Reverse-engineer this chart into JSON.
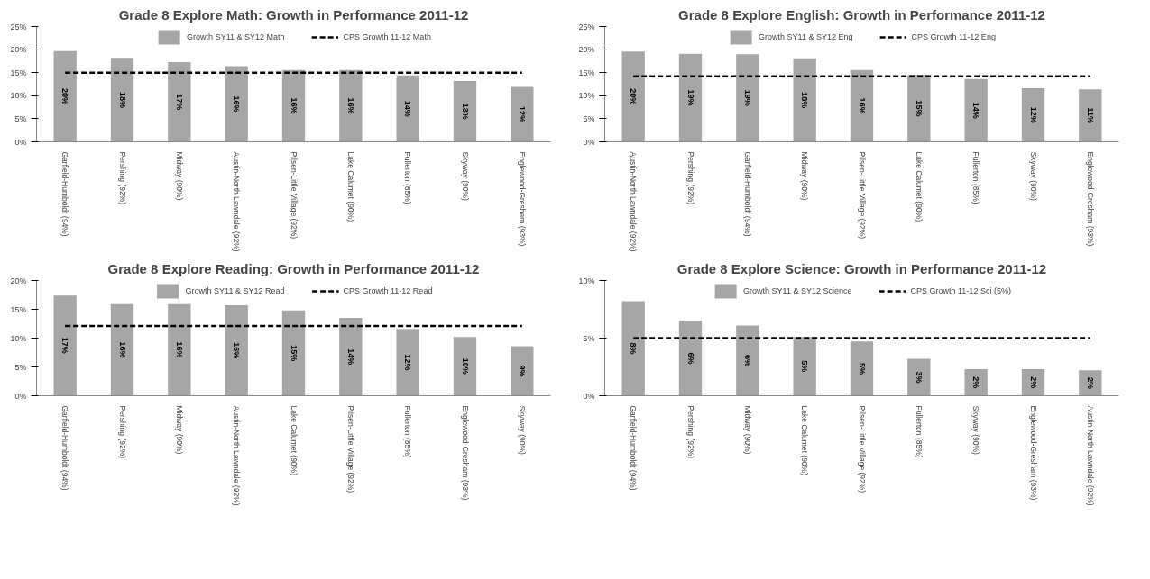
{
  "chart_data": [
    {
      "type": "bar",
      "title": "Grade 8 Explore Math: Growth in Performance 2011-12",
      "categories": [
        "Garfield-Humboldt (94%)",
        "Pershing (92%)",
        "Midway (90%)",
        "Austin-North Lawndale (92%)",
        "Pilsen-Little Village (92%)",
        "Lake Calumet (90%)",
        "Fullerton (85%)",
        "Skyway (90%)",
        "Englewood-Gresham (93%)"
      ],
      "series": [
        {
          "name": "Growth SY11 & SY12 Math",
          "color": "#a6a6a6",
          "values": [
            19.7,
            18.2,
            17.3,
            16.4,
            15.6,
            15.6,
            14.4,
            13.2,
            11.9
          ],
          "value_labels": [
            "20%",
            "18%",
            "17%",
            "16%",
            "16%",
            "16%",
            "14%",
            "13%",
            "12%"
          ]
        },
        {
          "name": "CPS Growth 11-12 Math",
          "type": "line",
          "line_style": "dashed",
          "color": "#000000",
          "values": [
            15,
            15,
            15,
            15,
            15,
            15,
            15,
            15,
            15
          ]
        }
      ],
      "ylim": [
        0,
        25
      ],
      "yticks": [
        {
          "value": 0,
          "label": "0%"
        },
        {
          "value": 5,
          "label": "5%"
        },
        {
          "value": 10,
          "label": "10%"
        },
        {
          "value": 15,
          "label": "15%"
        },
        {
          "value": 20,
          "label": "20%"
        },
        {
          "value": 25,
          "label": "25%"
        }
      ],
      "legend": "top"
    },
    {
      "type": "bar",
      "title": "Grade 8 Explore English: Growth in Performance 2011-12",
      "categories": [
        "Austin-North Lawndale (92%)",
        "Pershing (92%)",
        "Garfield-Humboldt (94%)",
        "Midway (90%)",
        "Pilsen-Little Village (92%)",
        "Lake Calumet (90%)",
        "Fullerton (85%)",
        "Skyway (90%)",
        "Englewood-Gresham (93%)"
      ],
      "series": [
        {
          "name": "Growth SY11 & SY12 Eng",
          "color": "#a6a6a6",
          "values": [
            19.6,
            19.1,
            19.0,
            18.1,
            15.6,
            14.5,
            13.6,
            11.6,
            11.4
          ],
          "value_labels": [
            "20%",
            "19%",
            "19%",
            "18%",
            "16%",
            "15%",
            "14%",
            "12%",
            "11%"
          ]
        },
        {
          "name": "CPS Growth 11-12 Eng",
          "type": "line",
          "line_style": "dashed",
          "color": "#000000",
          "values": [
            14.2,
            14.2,
            14.2,
            14.2,
            14.2,
            14.2,
            14.2,
            14.2,
            14.2
          ]
        }
      ],
      "ylim": [
        0,
        25
      ],
      "yticks": [
        {
          "value": 0,
          "label": "0%"
        },
        {
          "value": 5,
          "label": "5%"
        },
        {
          "value": 10,
          "label": "10%"
        },
        {
          "value": 15,
          "label": "15%"
        },
        {
          "value": 20,
          "label": "20%"
        },
        {
          "value": 25,
          "label": "25%"
        }
      ],
      "legend": "top"
    },
    {
      "type": "bar",
      "title": "Grade 8 Explore Reading: Growth in Performance 2011-12",
      "categories": [
        "Garfield-Humboldt (94%)",
        "Pershing (92%)",
        "Midway (90%)",
        "Austin-North Lawndale (92%)",
        "Lake Calumet (90%)",
        "Pilsen-Little Village (92%)",
        "Fullerton (85%)",
        "Englewood-Gresham (93%)",
        "Skyway (90%)"
      ],
      "series": [
        {
          "name": "Growth SY11 & SY12 Read",
          "color": "#a6a6a6",
          "values": [
            17.4,
            15.9,
            15.9,
            15.7,
            14.8,
            13.5,
            11.6,
            10.2,
            8.6
          ],
          "value_labels": [
            "17%",
            "16%",
            "16%",
            "16%",
            "15%",
            "14%",
            "12%",
            "10%",
            "9%"
          ]
        },
        {
          "name": "CPS Growth 11-12 Read",
          "type": "line",
          "line_style": "dashed",
          "color": "#000000",
          "values": [
            12.1,
            12.1,
            12.1,
            12.1,
            12.1,
            12.1,
            12.1,
            12.1,
            12.1
          ]
        }
      ],
      "ylim": [
        0,
        20
      ],
      "yticks": [
        {
          "value": 0,
          "label": "0%"
        },
        {
          "value": 5,
          "label": "5%"
        },
        {
          "value": 10,
          "label": "10%"
        },
        {
          "value": 15,
          "label": "15%"
        },
        {
          "value": 20,
          "label": "20%"
        }
      ],
      "legend": "top"
    },
    {
      "type": "bar",
      "title": "Grade 8 Explore Science: Growth in Performance 2011-12",
      "categories": [
        "Garfield-Humboldt (94%)",
        "Pershing (92%)",
        "Midway (90%)",
        "Lake Calumet (90%)",
        "Pilsen-Little Village (92%)",
        "Fullerton (85%)",
        "Skyway (90%)",
        "Englewood-Gresham (93%)",
        "Austin-North Lawndale (92%)"
      ],
      "series": [
        {
          "name": "Growth SY11 & SY12 Science",
          "color": "#a6a6a6",
          "values": [
            8.2,
            6.5,
            6.1,
            5.1,
            4.7,
            3.2,
            2.3,
            2.3,
            2.2
          ],
          "value_labels": [
            "8%",
            "6%",
            "6%",
            "5%",
            "5%",
            "3%",
            "2%",
            "2%",
            "2%"
          ]
        },
        {
          "name": "CPS Growth 11-12 Sci (5%)",
          "type": "line",
          "line_style": "dashed",
          "color": "#000000",
          "values": [
            5,
            5,
            5,
            5,
            5,
            5,
            5,
            5,
            5
          ]
        }
      ],
      "ylim": [
        0,
        10
      ],
      "yticks": [
        {
          "value": 0,
          "label": "0%"
        },
        {
          "value": 5,
          "label": "5%"
        },
        {
          "value": 10,
          "label": "10%"
        }
      ],
      "legend": "top"
    }
  ]
}
